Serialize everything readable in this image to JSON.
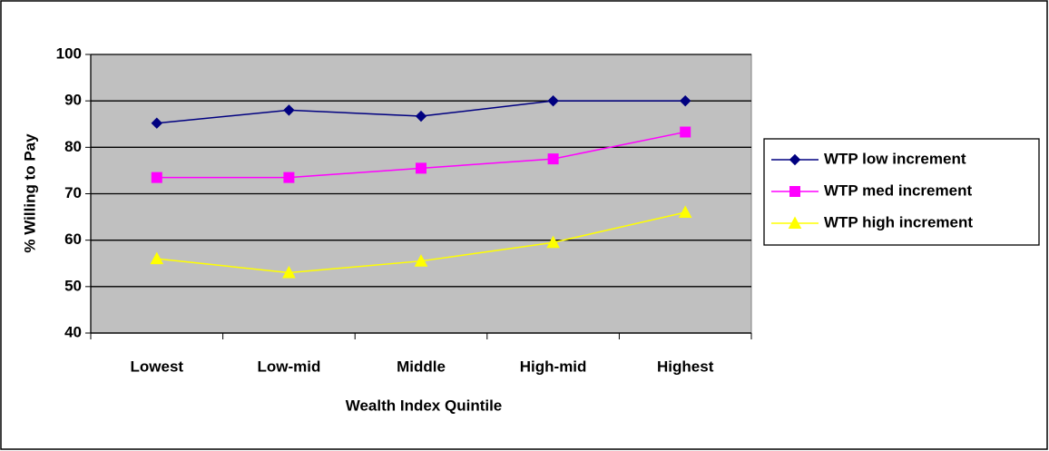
{
  "chart_data": {
    "type": "line",
    "x_label": "Wealth Index Quintile",
    "y_label": "% Willing to Pay",
    "categories": [
      "Lowest",
      "Low-mid",
      "Middle",
      "High-mid",
      "Highest"
    ],
    "series": [
      {
        "name": "WTP low increment",
        "color": "#000080",
        "marker": "diamond",
        "values": [
          85.2,
          88,
          86.7,
          90,
          90
        ]
      },
      {
        "name": "WTP med increment",
        "color": "#FF00FF",
        "marker": "square",
        "values": [
          73.5,
          73.5,
          75.5,
          77.5,
          83.3
        ]
      },
      {
        "name": "WTP high increment",
        "color": "#FFFF00",
        "marker": "triangle",
        "values": [
          56,
          53,
          55.5,
          59.5,
          66
        ]
      }
    ],
    "ylim": [
      40,
      100
    ],
    "yticks": [
      40,
      50,
      60,
      70,
      80,
      90,
      100
    ],
    "grid": true,
    "plot_background": "#C0C0C0",
    "legend": "right"
  }
}
